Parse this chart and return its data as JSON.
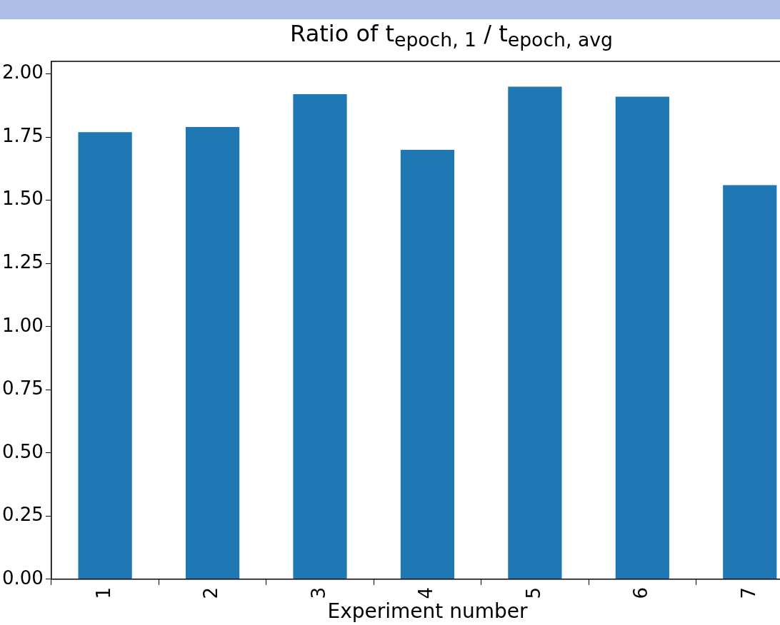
{
  "chart_data": {
    "type": "bar",
    "title": "Ratio of t$_{epoch, 1}$ / t$_{epoch, avg}$",
    "xlabel": "Experiment number",
    "categories": [
      "1",
      "2",
      "3",
      "4",
      "5",
      "6",
      "7"
    ],
    "values": [
      1.77,
      1.79,
      1.92,
      1.7,
      1.95,
      1.91,
      1.56
    ],
    "color": "#1f77b4",
    "ylim": [
      0,
      2.05
    ],
    "yticks": [
      {
        "value": 0,
        "label": "0.00"
      },
      {
        "value": 0.25,
        "label": "0.25"
      },
      {
        "value": 0.5,
        "label": "0.50"
      },
      {
        "value": 0.75,
        "label": "0.75"
      },
      {
        "value": 1,
        "label": "1.00"
      },
      {
        "value": 1.25,
        "label": "1.25"
      },
      {
        "value": 1.5,
        "label": "1.50"
      },
      {
        "value": 1.75,
        "label": "1.75"
      },
      {
        "value": 2,
        "label": "2.00"
      }
    ],
    "grid": false,
    "legend": false
  }
}
